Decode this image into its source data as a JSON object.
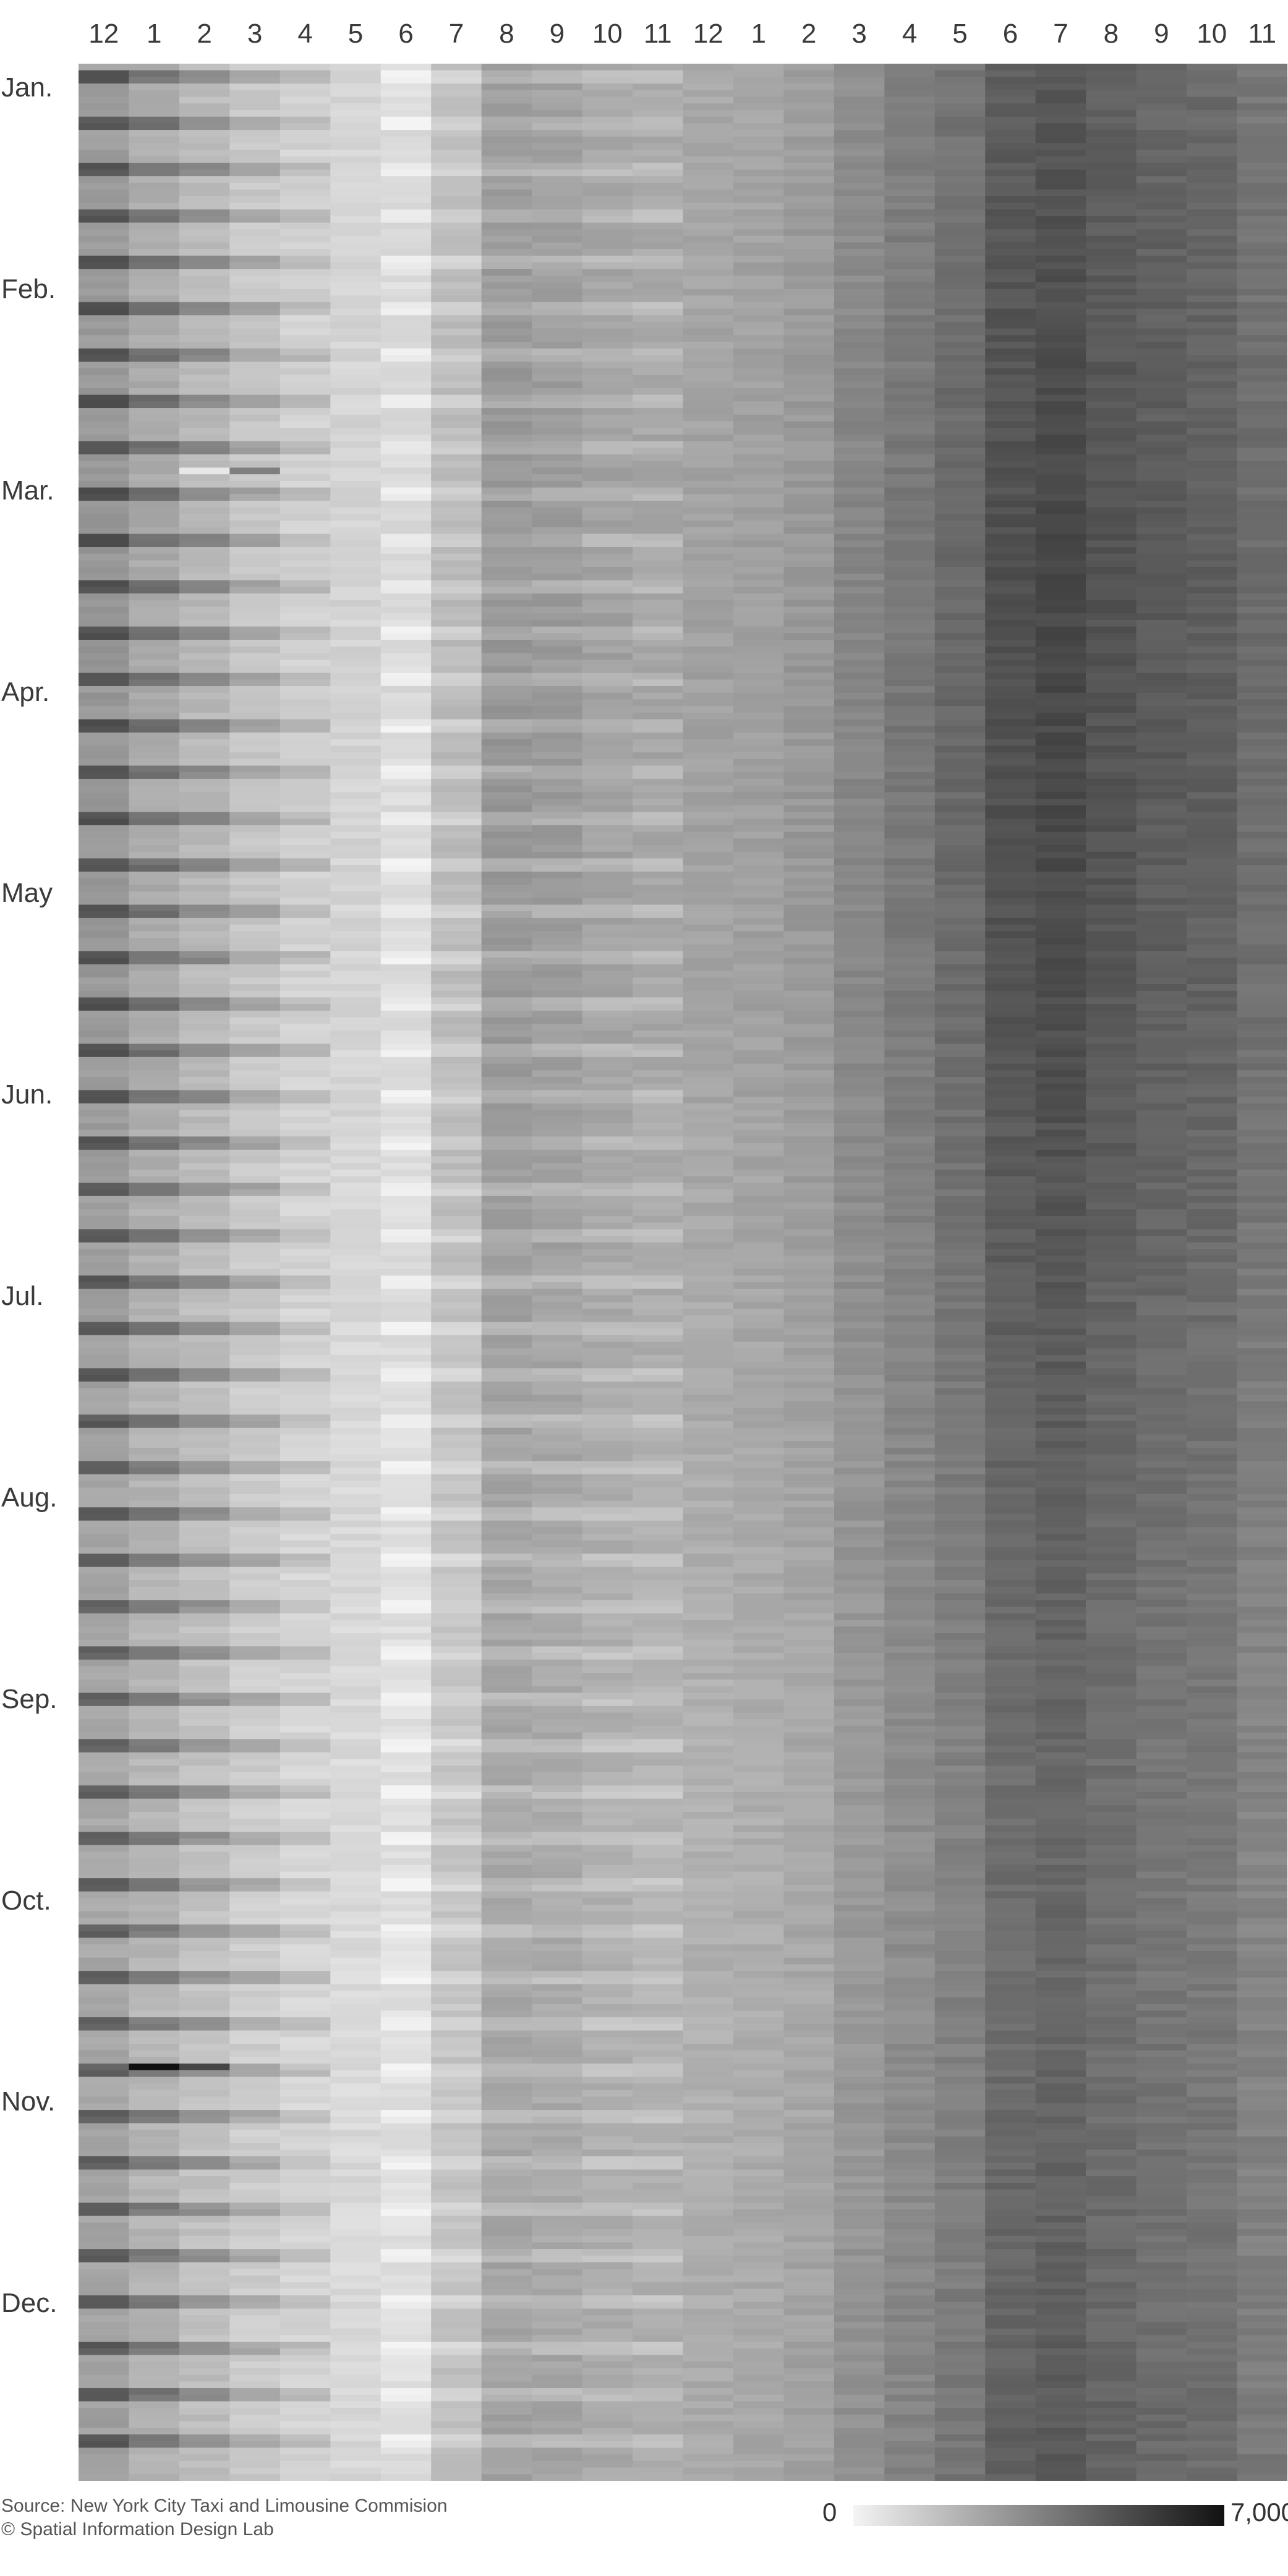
{
  "chart_data": {
    "type": "heatmap",
    "title": "",
    "x_labels": [
      "12",
      "1",
      "2",
      "3",
      "4",
      "5",
      "6",
      "7",
      "8",
      "9",
      "10",
      "11",
      "12",
      "1",
      "2",
      "3",
      "4",
      "5",
      "6",
      "7",
      "8",
      "9",
      "10",
      "11"
    ],
    "y_labels": [
      "Jan.",
      "Feb.",
      "Mar.",
      "Apr.",
      "May",
      "Jun.",
      "Jul.",
      "Aug.",
      "Sep.",
      "Oct.",
      "Nov.",
      "Dec."
    ],
    "rows": 365,
    "hours": 24,
    "hourly_profile": [
      2600,
      2100,
      1700,
      1300,
      1000,
      900,
      700,
      1600,
      2600,
      2500,
      2300,
      2200,
      2300,
      2400,
      2600,
      3100,
      3500,
      3900,
      4600,
      4800,
      4500,
      4300,
      4200,
      3800
    ],
    "weekend_night_boost": 2200,
    "weekend_day_boost": -600,
    "anomalies": [
      {
        "day": 302,
        "hour": 1,
        "value": 7000
      },
      {
        "day": 302,
        "hour": 2,
        "value": 5400
      },
      {
        "day": 61,
        "hour": 2,
        "value": 400
      },
      {
        "day": 61,
        "hour": 3,
        "value": 3600
      }
    ],
    "color_scale": {
      "min": 0,
      "max": 7000,
      "low_color": "#f4f4f4",
      "high_color": "#111111"
    },
    "legend": {
      "min_label": "0",
      "max_label": "7,000"
    }
  },
  "footer": {
    "source": "Source: New York City Taxi and Limousine Commision",
    "credit": "© Spatial Information Design Lab"
  }
}
